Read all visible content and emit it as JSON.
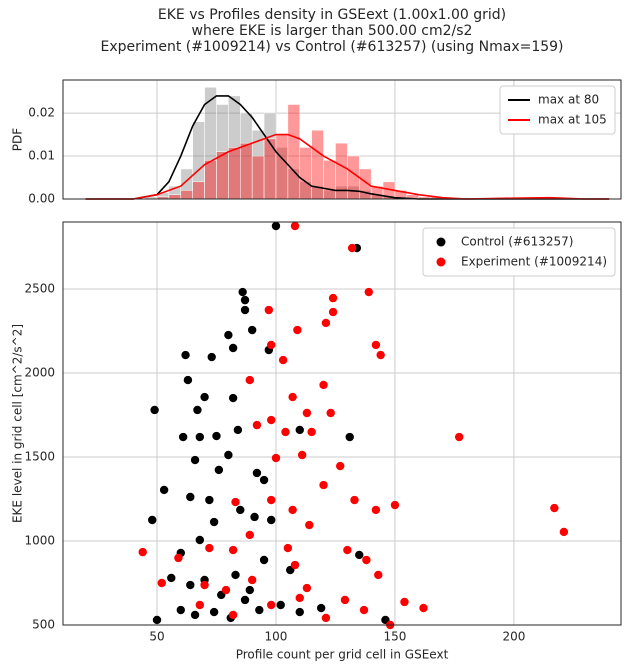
{
  "suptitle": [
    "EKE vs Profiles density in GSEext (1.00x1.00 grid)",
    "where EKE is larger than 500.00 cm2/s2",
    "Experiment (#1009214) vs Control (#613257) (using Nmax=159)"
  ],
  "chart_data": [
    {
      "type": "histogram",
      "ylabel": "PDF",
      "xlim": [
        10.5,
        245
      ],
      "ylim": [
        0,
        0.0277
      ],
      "xticks": [
        50,
        100,
        150,
        200
      ],
      "yticks": [
        {
          "value": 0,
          "label": "0.00"
        },
        {
          "value": 0.01,
          "label": "0.01"
        },
        {
          "value": 0.02,
          "label": "0.02"
        }
      ],
      "grid": true,
      "legend": "upper right",
      "bins": [
        45,
        50,
        55,
        60,
        65,
        70,
        75,
        80,
        85,
        90,
        95,
        100,
        105,
        110,
        115,
        120,
        125,
        130,
        135,
        140,
        145,
        150,
        155,
        160,
        165,
        170,
        175,
        180
      ],
      "series": [
        {
          "color": "#808080",
          "values": [
            0.0005,
            0.0015,
            0.003,
            0.007,
            0.018,
            0.026,
            0.022,
            0.024,
            0.02,
            0.016,
            0.02,
            0.012,
            0.007,
            0.004,
            0.003,
            0.002,
            0.003,
            0.003,
            0.002,
            0.001,
            0.0005,
            0,
            0,
            0,
            0,
            0,
            0
          ]
        },
        {
          "color": "#ff0000",
          "values": [
            0,
            0.0005,
            0.001,
            0.002,
            0.004,
            0.009,
            0.011,
            0.012,
            0.013,
            0.01,
            0.014,
            0.015,
            0.022,
            0.012,
            0.016,
            0.009,
            0.013,
            0.01,
            0.007,
            0.003,
            0.004,
            0.002,
            0.001,
            0.0005,
            0.0005,
            0,
            0
          ]
        }
      ],
      "lines": [
        {
          "name": "max at 80",
          "color": "#000000",
          "x": [
            20,
            30,
            40,
            50,
            55,
            60,
            65,
            70,
            75,
            80,
            85,
            90,
            95,
            100,
            105,
            110,
            115,
            120,
            125,
            130,
            135,
            140,
            150,
            160,
            200,
            240
          ],
          "values": [
            0,
            0,
            0,
            0.001,
            0.004,
            0.01,
            0.017,
            0.022,
            0.024,
            0.024,
            0.022,
            0.019,
            0.015,
            0.011,
            0.008,
            0.005,
            0.003,
            0.0025,
            0.002,
            0.002,
            0.0018,
            0.0012,
            0.0003,
            0,
            0,
            0
          ]
        },
        {
          "name": "max at 105",
          "color": "#ff0000",
          "x": [
            20,
            40,
            50,
            60,
            70,
            80,
            90,
            100,
            105,
            110,
            120,
            130,
            140,
            150,
            160,
            170,
            180,
            200,
            215,
            230,
            240
          ],
          "values": [
            0,
            0,
            0.001,
            0.003,
            0.008,
            0.011,
            0.013,
            0.015,
            0.015,
            0.014,
            0.01,
            0.007,
            0.003,
            0.002,
            0.001,
            0.0003,
            0,
            0.0002,
            0.0003,
            0,
            0
          ]
        }
      ]
    },
    {
      "type": "scatter",
      "xlabel": "Profile count per grid cell in GSEext",
      "ylabel": "EKE level in grid cell [cm^2/s^2]",
      "xlim": [
        10.5,
        245
      ],
      "ylim": [
        500,
        2899
      ],
      "xticks": [
        50,
        100,
        150,
        200
      ],
      "yticks": [
        500,
        1000,
        1500,
        2000,
        2500
      ],
      "grid": true,
      "legend": "upper right",
      "series": [
        {
          "name": "Control (#613257)",
          "color": "#000000",
          "x": [
            100,
            134,
            86,
            87,
            87,
            80,
            62,
            73,
            82,
            63,
            70,
            82,
            67,
            49,
            61,
            68,
            75,
            84,
            131,
            76,
            80,
            53,
            64,
            72,
            48,
            60,
            68,
            74,
            85,
            91,
            98,
            56,
            64,
            70,
            77,
            83,
            87,
            93,
            102,
            110,
            119,
            50,
            146,
            95,
            106,
            60,
            66,
            74,
            81,
            89,
            66,
            92,
            95,
            110,
            135,
            90,
            97
          ],
          "values": [
            2875,
            2744,
            2482,
            2434,
            2375,
            2226,
            2107,
            2095,
            2149,
            1958,
            1857,
            1851,
            1780,
            1780,
            1619,
            1619,
            1625,
            1661,
            1619,
            1423,
            1512,
            1304,
            1262,
            1244,
            1125,
            929,
            1006,
            1113,
            1185,
            1143,
            1125,
            780,
            738,
            768,
            679,
            798,
            649,
            589,
            619,
            577,
            601,
            530,
            530,
            887,
            827,
            589,
            560,
            577,
            542,
            708,
            1482,
            1405,
            1363,
            1661,
            917,
            2256,
            2137
          ]
        },
        {
          "name": "Experiment (#1009214)",
          "color": "#ff0000",
          "x": [
            108,
            132,
            139,
            124,
            124,
            97,
            98,
            103,
            109,
            121,
            142,
            144,
            89,
            120,
            107,
            113,
            123,
            98,
            104,
            115,
            177,
            127,
            100,
            111,
            217,
            221,
            150,
            142,
            133,
            120,
            98,
            107,
            114,
            89,
            82,
            44,
            59,
            72,
            105,
            130,
            138,
            108,
            52,
            70,
            79,
            90,
            113,
            143,
            154,
            162,
            129,
            137,
            148,
            82,
            98,
            110,
            121,
            68,
            92,
            83
          ],
          "values": [
            2875,
            2744,
            2482,
            2446,
            2363,
            2375,
            2167,
            2077,
            2256,
            2298,
            2167,
            2107,
            1958,
            1929,
            1857,
            1762,
            1762,
            1720,
            1649,
            1649,
            1619,
            1446,
            1494,
            1512,
            1196,
            1054,
            1214,
            1185,
            1244,
            1333,
            1244,
            1185,
            1095,
            1036,
            946,
            934,
            899,
            958,
            958,
            946,
            887,
            857,
            750,
            738,
            708,
            768,
            720,
            798,
            637,
            601,
            649,
            589,
            500,
            560,
            619,
            661,
            542,
            619,
            1690,
            1232
          ]
        }
      ]
    }
  ]
}
